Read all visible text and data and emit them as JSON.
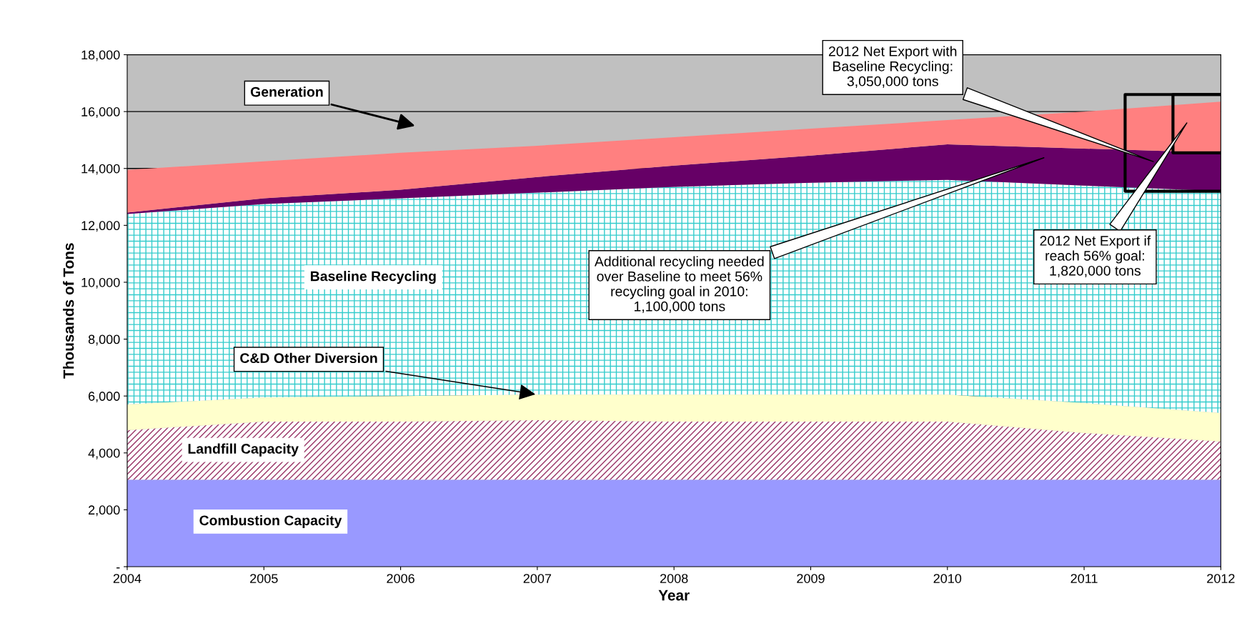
{
  "chart_data": {
    "type": "area",
    "stacked": true,
    "xlabel": "Year",
    "ylabel": "Thousands of Tons",
    "x": [
      2004,
      2005,
      2006,
      2007,
      2008,
      2009,
      2010,
      2011,
      2012
    ],
    "xlim": [
      2004,
      2012
    ],
    "xticks": [
      2004,
      2005,
      2006,
      2007,
      2008,
      2009,
      2010,
      2011,
      2012
    ],
    "ylim": [
      0,
      18000
    ],
    "yticks": [
      {
        "value": 0,
        "label": "-"
      },
      {
        "value": 2000,
        "label": "2,000"
      },
      {
        "value": 4000,
        "label": "4,000"
      },
      {
        "value": 6000,
        "label": "6,000"
      },
      {
        "value": 8000,
        "label": "8,000"
      },
      {
        "value": 10000,
        "label": "10,000"
      },
      {
        "value": 12000,
        "label": "12,000"
      },
      {
        "value": 14000,
        "label": "14,000"
      },
      {
        "value": 16000,
        "label": "16,000"
      },
      {
        "value": 18000,
        "label": "18,000"
      }
    ],
    "grid": "y",
    "legend": false,
    "series": [
      {
        "color": "#9999ff",
        "values": [
          3050,
          3050,
          3050,
          3050,
          3050,
          3050,
          3050,
          3050,
          3050
        ]
      },
      {
        "color": "#993366",
        "values": [
          1750,
          2050,
          2050,
          2100,
          2050,
          2050,
          2050,
          1650,
          1350
        ]
      },
      {
        "color": "#ffffcc",
        "values": [
          900,
          850,
          900,
          900,
          950,
          950,
          950,
          1050,
          1000
        ]
      },
      {
        "color": "#33cccc",
        "values": [
          6700,
          6800,
          6950,
          7100,
          7300,
          7450,
          7550,
          7650,
          7800
        ]
      },
      {
        "color": "#660066",
        "values": [
          50,
          200,
          300,
          550,
          750,
          950,
          1250,
          1300,
          1350
        ]
      },
      {
        "color": "#ff8080",
        "values": [
          1500,
          1300,
          1300,
          1100,
          1000,
          950,
          850,
          1300,
          1800
        ]
      }
    ],
    "annotations": [
      "Generation",
      {
        "text": "C&D Other Diversion",
        "x": 2007,
        "y": 6050
      },
      "Baseline Recycling",
      "Landfill Capacity",
      "Combustion Capacity",
      "2012 Net Export with\nBaseline Recycling:\n3,050,000 tons",
      "Additional recycling needed\nover Baseline to meet 56%\nrecycling goal in 2010:\n1,100,000 tons",
      "2012 Net Export if\nreach 56% goal:\n1,820,000 tons"
    ]
  }
}
